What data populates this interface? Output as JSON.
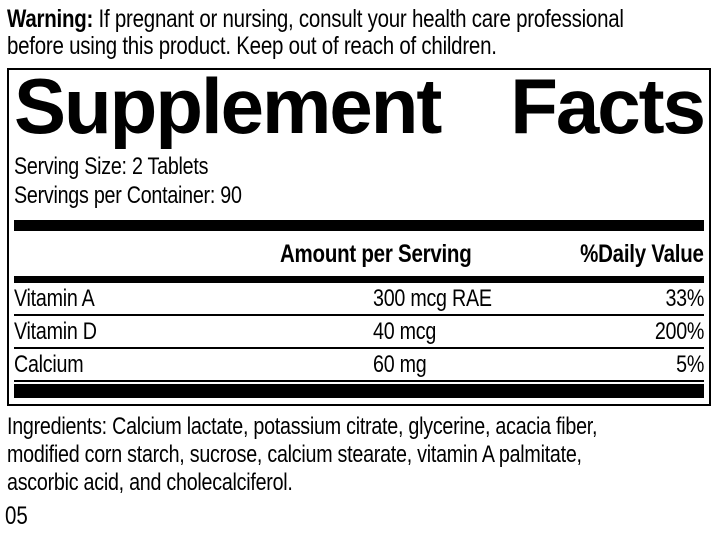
{
  "warning": {
    "label": "Warning:",
    "text_line1": "If pregnant or nursing, consult your health care professional",
    "text_line2": "before using this product. Keep out of reach of children."
  },
  "panel": {
    "title_left": "Supplement",
    "title_right": "Facts",
    "serving_size": "Serving Size: 2 Tablets",
    "servings_per_container": "Servings per Container: 90"
  },
  "table": {
    "headers": {
      "amount": "Amount per Serving",
      "daily_value": "%Daily Value"
    },
    "rows": [
      {
        "name": "Vitamin A",
        "amount": "300 mcg RAE",
        "dv": "33%"
      },
      {
        "name": "Vitamin D",
        "amount": "40 mcg",
        "dv": "200%"
      },
      {
        "name": "Calcium",
        "amount": "60 mg",
        "dv": "5%"
      }
    ]
  },
  "ingredients": {
    "lines": [
      "Ingredients: Calcium lactate, potassium citrate, glycerine, acacia fiber,",
      "modified corn starch, sucrose, calcium stearate, vitamin A palmitate,",
      "ascorbic acid, and cholecalciferol."
    ]
  },
  "footer": {
    "code": "05"
  },
  "colors": {
    "text": "#000000",
    "background": "#ffffff",
    "rule": "#000000"
  }
}
